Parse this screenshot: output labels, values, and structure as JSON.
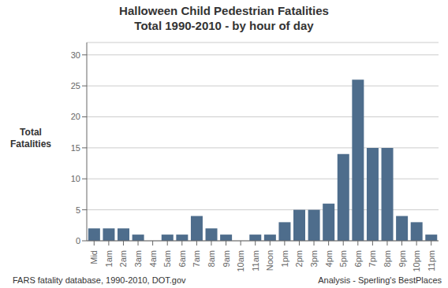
{
  "chart_data": {
    "type": "bar",
    "title": "Halloween Child Pedestrian Fatalities",
    "subtitle": "Total 1990-2010 - by hour of day",
    "y_label": "Total\nFatalities",
    "categories": [
      "Mid",
      "1am",
      "2am",
      "3am",
      "4am",
      "5am",
      "6am",
      "7am",
      "8am",
      "9am",
      "10am",
      "11am",
      "Noon",
      "1pm",
      "2pm",
      "3pm",
      "4pm",
      "5pm",
      "6pm",
      "7pm",
      "8pm",
      "9pm",
      "10pm",
      "11pm"
    ],
    "values": [
      2,
      2,
      2,
      1,
      0,
      1,
      1,
      4,
      2,
      1,
      0,
      1,
      1,
      3,
      5,
      5,
      6,
      14,
      26,
      15,
      15,
      4,
      3,
      1
    ],
    "color": "#4E6D8C",
    "ylim": [
      0,
      32
    ],
    "yticks": [
      0,
      5,
      10,
      15,
      20,
      25,
      30
    ],
    "grid": true,
    "annotations": [
      "FARS fatality database, 1990-2010, DOT.gov",
      "Analysis - Sperling's BestPlaces"
    ]
  }
}
